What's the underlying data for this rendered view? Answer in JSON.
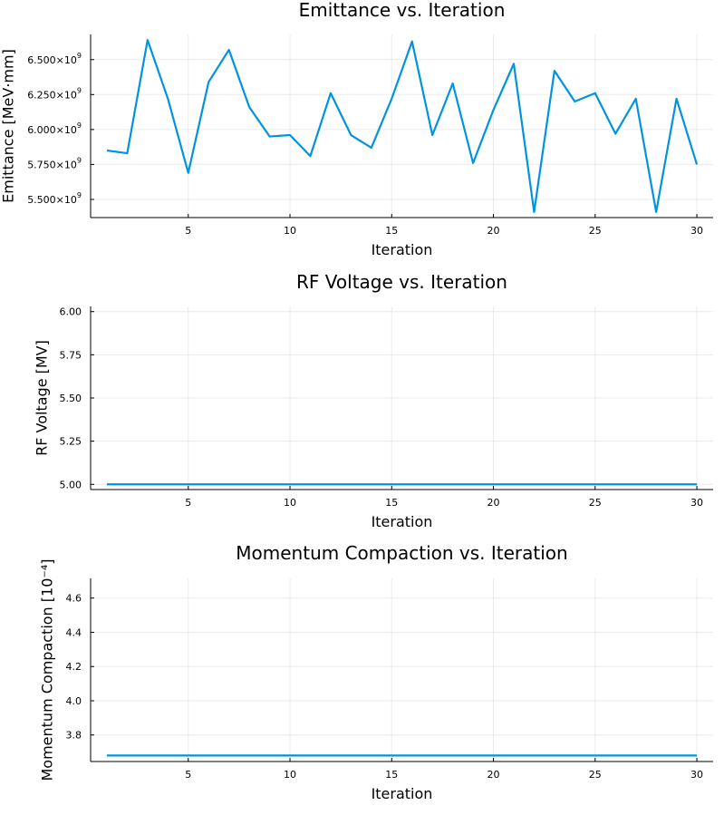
{
  "chart_data": [
    {
      "type": "line",
      "title": "Emittance vs. Iteration",
      "xlabel": "Iteration",
      "ylabel": "Emittance [MeV·mm]",
      "xlim": [
        0.2,
        30.8
      ],
      "ylim": [
        5370000000.0,
        6680000000.0
      ],
      "x_ticks": [
        5,
        10,
        15,
        20,
        25,
        30
      ],
      "y_ticks": [
        {
          "value": 5500000000.0,
          "mantissa": "5.500×10",
          "exp": "9"
        },
        {
          "value": 5750000000.0,
          "mantissa": "5.750×10",
          "exp": "9"
        },
        {
          "value": 6000000000.0,
          "mantissa": "6.000×10",
          "exp": "9"
        },
        {
          "value": 6250000000.0,
          "mantissa": "6.250×10",
          "exp": "9"
        },
        {
          "value": 6500000000.0,
          "mantissa": "6.500×10",
          "exp": "9"
        }
      ],
      "grid": true,
      "series": [
        {
          "color": "#0094de",
          "x": [
            1,
            2,
            3,
            4,
            5,
            6,
            7,
            8,
            9,
            10,
            11,
            12,
            13,
            14,
            15,
            16,
            17,
            18,
            19,
            20,
            21,
            22,
            23,
            24,
            25,
            26,
            27,
            28,
            29,
            30
          ],
          "values": [
            5850000000.0,
            5830000000.0,
            6640000000.0,
            6220000000.0,
            5690000000.0,
            6340000000.0,
            6570000000.0,
            6160000000.0,
            5950000000.0,
            5960000000.0,
            5810000000.0,
            6260000000.0,
            5960000000.0,
            5870000000.0,
            6220000000.0,
            6630000000.0,
            5960000000.0,
            6330000000.0,
            5760000000.0,
            6140000000.0,
            6470000000.0,
            5410000000.0,
            6420000000.0,
            6200000000.0,
            6260000000.0,
            5970000000.0,
            6220000000.0,
            5410000000.0,
            6220000000.0,
            5750000000.0
          ]
        }
      ]
    },
    {
      "type": "line",
      "title": "RF Voltage vs. Iteration",
      "xlabel": "Iteration",
      "ylabel": "RF Voltage [MV]",
      "xlim": [
        0.2,
        30.8
      ],
      "ylim": [
        4.97,
        6.03
      ],
      "x_ticks": [
        5,
        10,
        15,
        20,
        25,
        30
      ],
      "y_ticks": [
        {
          "value": 5.0,
          "label": "5.00"
        },
        {
          "value": 5.25,
          "label": "5.25"
        },
        {
          "value": 5.5,
          "label": "5.50"
        },
        {
          "value": 5.75,
          "label": "5.75"
        },
        {
          "value": 6.0,
          "label": "6.00"
        }
      ],
      "grid": true,
      "series": [
        {
          "color": "#0094de",
          "x": [
            1,
            2,
            3,
            4,
            5,
            6,
            7,
            8,
            9,
            10,
            11,
            12,
            13,
            14,
            15,
            16,
            17,
            18,
            19,
            20,
            21,
            22,
            23,
            24,
            25,
            26,
            27,
            28,
            29,
            30
          ],
          "values": [
            5,
            5,
            5,
            5,
            5,
            5,
            5,
            5,
            5,
            5,
            5,
            5,
            5,
            5,
            5,
            5,
            5,
            5,
            5,
            5,
            5,
            5,
            5,
            5,
            5,
            5,
            5,
            5,
            5,
            5
          ]
        }
      ]
    },
    {
      "type": "line",
      "title": "Momentum Compaction vs. Iteration",
      "xlabel": "Iteration",
      "ylabel": "Momentum Compaction [10⁻⁴]",
      "xlim": [
        0.2,
        30.8
      ],
      "ylim": [
        3.645,
        4.715
      ],
      "x_ticks": [
        5,
        10,
        15,
        20,
        25,
        30
      ],
      "y_ticks": [
        {
          "value": 3.8,
          "label": "3.8"
        },
        {
          "value": 4.0,
          "label": "4.0"
        },
        {
          "value": 4.2,
          "label": "4.2"
        },
        {
          "value": 4.4,
          "label": "4.4"
        },
        {
          "value": 4.6,
          "label": "4.6"
        }
      ],
      "grid": true,
      "series": [
        {
          "color": "#0094de",
          "x": [
            1,
            2,
            3,
            4,
            5,
            6,
            7,
            8,
            9,
            10,
            11,
            12,
            13,
            14,
            15,
            16,
            17,
            18,
            19,
            20,
            21,
            22,
            23,
            24,
            25,
            26,
            27,
            28,
            29,
            30
          ],
          "values": [
            3.68,
            3.68,
            3.68,
            3.68,
            3.68,
            3.68,
            3.68,
            3.68,
            3.68,
            3.68,
            3.68,
            3.68,
            3.68,
            3.68,
            3.68,
            3.68,
            3.68,
            3.68,
            3.68,
            3.68,
            3.68,
            3.68,
            3.68,
            3.68,
            3.68,
            3.68,
            3.68,
            3.68,
            3.68,
            3.68
          ]
        }
      ]
    }
  ]
}
